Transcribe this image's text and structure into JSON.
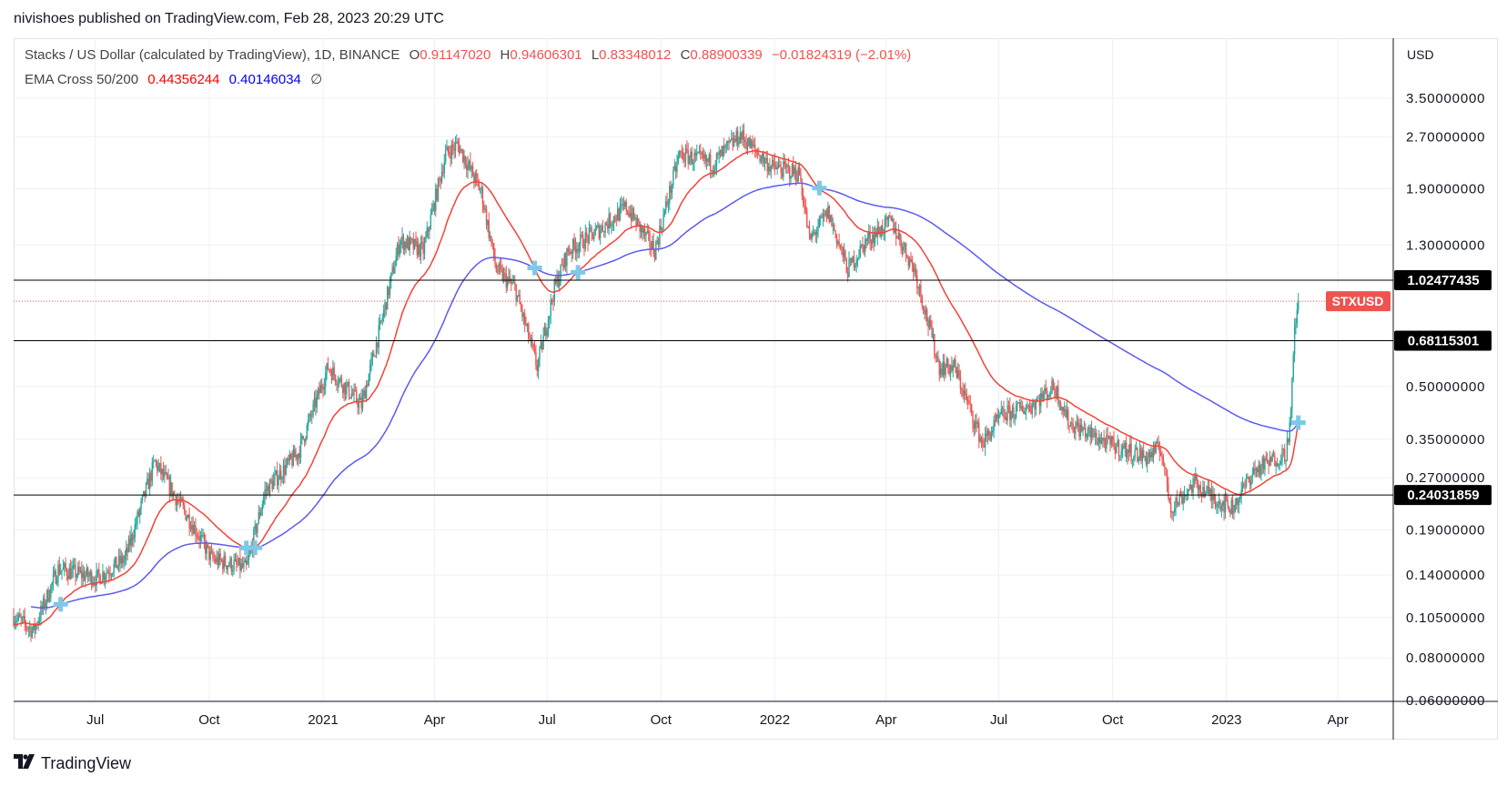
{
  "header": {
    "published": "nivishoes published on TradingView.com, Feb 28, 2023 20:29 UTC"
  },
  "legend": {
    "symbol": "Stacks / US Dollar (calculated by TradingView), 1D, BINANCE",
    "o_label": "O",
    "o": "0.91147020",
    "h_label": "H",
    "h": "0.94606301",
    "l_label": "L",
    "l": "0.83348012",
    "c_label": "C",
    "c": "0.88900339",
    "change": "−0.01824319 (−2.01%)",
    "indicator": "EMA Cross 50/200",
    "ema_fast": "0.44356244",
    "ema_slow": "0.40146034",
    "hide_icon": "∅"
  },
  "footer": {
    "brand": "TradingView",
    "logo_mark": "17"
  },
  "colors": {
    "up": "#26a69a",
    "down": "#ef5350",
    "ema_fast": "#f44336",
    "ema_slow": "#5b5bf0",
    "cross": "#7ec8e8",
    "grid": "#edf0f5"
  },
  "chart_data": {
    "type": "candlestick",
    "title": "Stacks / US Dollar, 1D, BINANCE",
    "currency": "USD",
    "symbol_tag": "STXUSD",
    "scale": "log",
    "ylim": [
      0.058,
      4.1
    ],
    "xlim": [
      "2020-04-26",
      "2023-05-01"
    ],
    "y_ticks": [
      "3.50000000",
      "2.70000000",
      "1.90000000",
      "1.30000000",
      "0.50000000",
      "0.35000000",
      "0.27000000",
      "0.19000000",
      "0.14000000",
      "0.10500000",
      "0.08000000",
      "0.06000000"
    ],
    "x_ticks": [
      {
        "date": "2020-07-01",
        "label": "Jul"
      },
      {
        "date": "2020-10-01",
        "label": "Oct"
      },
      {
        "date": "2021-01-01",
        "label": "2021"
      },
      {
        "date": "2021-04-01",
        "label": "Apr"
      },
      {
        "date": "2021-07-01",
        "label": "Jul"
      },
      {
        "date": "2021-10-01",
        "label": "Oct"
      },
      {
        "date": "2022-01-01",
        "label": "2022"
      },
      {
        "date": "2022-04-01",
        "label": "Apr"
      },
      {
        "date": "2022-07-01",
        "label": "Jul"
      },
      {
        "date": "2022-10-01",
        "label": "Oct"
      },
      {
        "date": "2023-01-01",
        "label": "2023"
      },
      {
        "date": "2023-04-01",
        "label": "Apr"
      }
    ],
    "horizontal_levels": [
      "1.02477435",
      "0.68115301",
      "0.24031859"
    ],
    "last_close": 0.88900339,
    "close_path": [
      [
        "2020-04-26",
        0.106
      ],
      [
        "2020-05-12",
        0.096
      ],
      [
        "2020-06-01",
        0.146
      ],
      [
        "2020-07-02",
        0.137
      ],
      [
        "2020-07-25",
        0.156
      ],
      [
        "2020-08-18",
        0.3
      ],
      [
        "2020-09-06",
        0.23
      ],
      [
        "2020-09-18",
        0.196
      ],
      [
        "2020-10-03",
        0.156
      ],
      [
        "2020-10-31",
        0.146
      ],
      [
        "2020-11-15",
        0.246
      ],
      [
        "2020-12-12",
        0.32
      ],
      [
        "2021-01-05",
        0.57
      ],
      [
        "2021-02-01",
        0.44
      ],
      [
        "2021-02-16",
        0.74
      ],
      [
        "2021-03-04",
        1.34
      ],
      [
        "2021-03-23",
        1.25
      ],
      [
        "2021-04-10",
        2.4
      ],
      [
        "2021-04-20",
        2.56
      ],
      [
        "2021-05-09",
        1.85
      ],
      [
        "2021-05-21",
        1.1
      ],
      [
        "2021-06-05",
        0.97
      ],
      [
        "2021-06-23",
        0.57
      ],
      [
        "2021-07-07",
        0.97
      ],
      [
        "2021-07-18",
        1.25
      ],
      [
        "2021-08-11",
        1.43
      ],
      [
        "2021-09-03",
        1.68
      ],
      [
        "2021-09-26",
        1.25
      ],
      [
        "2021-10-16",
        2.4
      ],
      [
        "2021-11-12",
        2.25
      ],
      [
        "2021-12-04",
        2.73
      ],
      [
        "2021-12-29",
        2.2
      ],
      [
        "2022-01-21",
        2.11
      ],
      [
        "2022-01-29",
        1.34
      ],
      [
        "2022-02-13",
        1.62
      ],
      [
        "2022-03-01",
        1.1
      ],
      [
        "2022-03-16",
        1.34
      ],
      [
        "2022-04-05",
        1.52
      ],
      [
        "2022-04-24",
        1.1
      ],
      [
        "2022-05-14",
        0.57
      ],
      [
        "2022-05-26",
        0.57
      ],
      [
        "2022-06-18",
        0.34
      ],
      [
        "2022-07-03",
        0.41
      ],
      [
        "2022-07-27",
        0.44
      ],
      [
        "2022-08-15",
        0.5
      ],
      [
        "2022-08-27",
        0.39
      ],
      [
        "2022-09-27",
        0.34
      ],
      [
        "2022-10-28",
        0.31
      ],
      [
        "2022-11-09",
        0.33
      ],
      [
        "2022-11-17",
        0.22
      ],
      [
        "2022-12-06",
        0.26
      ],
      [
        "2022-12-26",
        0.23
      ],
      [
        "2023-01-06",
        0.22
      ],
      [
        "2023-01-22",
        0.28
      ],
      [
        "2023-02-18",
        0.32
      ],
      [
        "2023-02-22",
        0.41
      ],
      [
        "2023-02-25",
        0.74
      ],
      [
        "2023-02-27",
        0.85
      ],
      [
        "2023-02-28",
        0.889
      ]
    ],
    "ema_periods": [
      50,
      200
    ],
    "ema_seed": [
      0.1,
      0.115
    ]
  }
}
